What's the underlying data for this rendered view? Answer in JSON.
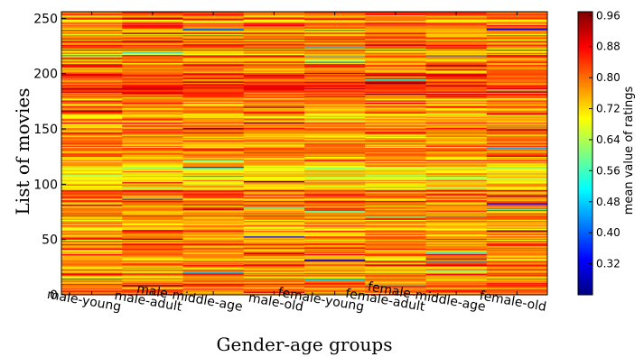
{
  "chart_data": {
    "type": "heatmap",
    "title": "",
    "xlabel": "Gender-age groups",
    "ylabel": "List of movies",
    "categories": [
      "male-young",
      "male-adult",
      "male-middle-age",
      "male-old",
      "female-young",
      "female-adult",
      "female-middle-age",
      "female-old"
    ],
    "ylim": [
      0,
      256
    ],
    "y_ticks": [
      0,
      50,
      100,
      150,
      200,
      250
    ],
    "rows": 256,
    "colorbar": {
      "label": "mean value of ratings",
      "range": [
        0.24,
        0.97
      ],
      "ticks": [
        0.32,
        0.4,
        0.48,
        0.56,
        0.64,
        0.72,
        0.8,
        0.88,
        0.96
      ],
      "colormap": "jet"
    },
    "value_summary": {
      "typical_range": [
        0.6,
        0.92
      ],
      "dominant_tone": "orange/yellow",
      "high_band_rows": [
        180,
        200
      ],
      "greenish_band_rows": [
        95,
        120
      ]
    }
  }
}
